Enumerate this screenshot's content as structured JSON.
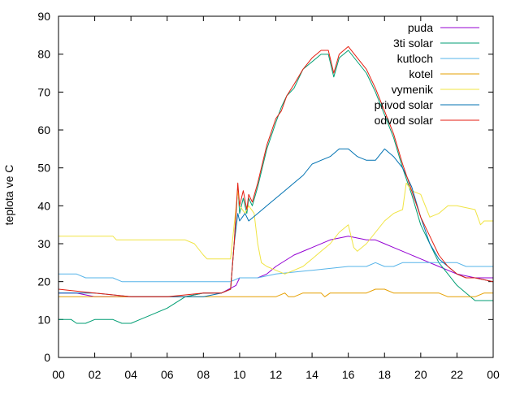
{
  "chart_data": {
    "type": "line",
    "title": "",
    "xlabel": "",
    "ylabel": "teplota ve C",
    "xlim": [
      0,
      24
    ],
    "ylim": [
      0,
      90
    ],
    "grid": false,
    "legend_position": "top-right",
    "x_ticks": [
      "00",
      "02",
      "04",
      "06",
      "08",
      "10",
      "12",
      "14",
      "16",
      "18",
      "20",
      "22",
      "00"
    ],
    "y_ticks": [
      "0",
      "10",
      "20",
      "30",
      "40",
      "50",
      "60",
      "70",
      "80",
      "90"
    ],
    "series": [
      {
        "name": "puda",
        "color": "#9400d3",
        "points": [
          [
            0,
            17
          ],
          [
            1,
            17
          ],
          [
            2,
            16
          ],
          [
            3,
            16
          ],
          [
            4,
            16
          ],
          [
            5,
            16
          ],
          [
            6,
            16
          ],
          [
            7,
            16
          ],
          [
            8,
            17
          ],
          [
            9,
            17
          ],
          [
            9.8,
            19
          ],
          [
            10,
            21
          ],
          [
            11,
            21
          ],
          [
            11.5,
            22
          ],
          [
            12,
            24
          ],
          [
            13,
            27
          ],
          [
            14,
            29
          ],
          [
            15,
            31
          ],
          [
            16,
            32
          ],
          [
            17,
            31
          ],
          [
            17.5,
            31
          ],
          [
            18,
            30
          ],
          [
            18.5,
            29
          ],
          [
            19,
            28
          ],
          [
            20,
            26
          ],
          [
            21,
            24
          ],
          [
            22,
            22
          ],
          [
            23,
            21
          ],
          [
            24,
            21
          ]
        ]
      },
      {
        "name": "3ti solar",
        "color": "#009e73",
        "points": [
          [
            0,
            10
          ],
          [
            0.7,
            10
          ],
          [
            1,
            9
          ],
          [
            1.5,
            9
          ],
          [
            2,
            10
          ],
          [
            3,
            10
          ],
          [
            3.5,
            9
          ],
          [
            4,
            9
          ],
          [
            4.5,
            10
          ],
          [
            5,
            11
          ],
          [
            6,
            13
          ],
          [
            7,
            16
          ],
          [
            8,
            17
          ],
          [
            9,
            17
          ],
          [
            9.5,
            18
          ],
          [
            9.7,
            30
          ],
          [
            9.9,
            45
          ],
          [
            10,
            38
          ],
          [
            10.2,
            42
          ],
          [
            10.4,
            38
          ],
          [
            10.5,
            42
          ],
          [
            10.7,
            40
          ],
          [
            11,
            45
          ],
          [
            11.5,
            55
          ],
          [
            12,
            62
          ],
          [
            12.3,
            66
          ],
          [
            12.6,
            69
          ],
          [
            13,
            71
          ],
          [
            13.5,
            76
          ],
          [
            14,
            78
          ],
          [
            14.5,
            80
          ],
          [
            14.9,
            80
          ],
          [
            15.2,
            74
          ],
          [
            15.5,
            79
          ],
          [
            16,
            81
          ],
          [
            16.5,
            78
          ],
          [
            17,
            75
          ],
          [
            17.5,
            70
          ],
          [
            18,
            64
          ],
          [
            18.5,
            58
          ],
          [
            19,
            50
          ],
          [
            19.5,
            43
          ],
          [
            20,
            35
          ],
          [
            20.5,
            30
          ],
          [
            21,
            25
          ],
          [
            21.5,
            22
          ],
          [
            22,
            19
          ],
          [
            22.5,
            17
          ],
          [
            23,
            15
          ],
          [
            24,
            15
          ]
        ]
      },
      {
        "name": "kutloch",
        "color": "#56b4e9",
        "points": [
          [
            0,
            22
          ],
          [
            1,
            22
          ],
          [
            1.5,
            21
          ],
          [
            3,
            21
          ],
          [
            3.5,
            20
          ],
          [
            4,
            20
          ],
          [
            6,
            20
          ],
          [
            8,
            20
          ],
          [
            9.5,
            20
          ],
          [
            10,
            21
          ],
          [
            11,
            21
          ],
          [
            12,
            22
          ],
          [
            14,
            23
          ],
          [
            16,
            24
          ],
          [
            17,
            24
          ],
          [
            17.5,
            25
          ],
          [
            18,
            24
          ],
          [
            18.5,
            24
          ],
          [
            19,
            25
          ],
          [
            22,
            25
          ],
          [
            22.5,
            24
          ],
          [
            24,
            24
          ]
        ]
      },
      {
        "name": "kotel",
        "color": "#e69f00",
        "points": [
          [
            0,
            16
          ],
          [
            10,
            16
          ],
          [
            11,
            16
          ],
          [
            12,
            16
          ],
          [
            12.5,
            17
          ],
          [
            12.7,
            16
          ],
          [
            13,
            16
          ],
          [
            13.5,
            17
          ],
          [
            14,
            17
          ],
          [
            14.5,
            17
          ],
          [
            14.7,
            16
          ],
          [
            15,
            17
          ],
          [
            16,
            17
          ],
          [
            17,
            17
          ],
          [
            17.5,
            18
          ],
          [
            18,
            18
          ],
          [
            18.5,
            17
          ],
          [
            19,
            17
          ],
          [
            21,
            17
          ],
          [
            21.5,
            16
          ],
          [
            23,
            16
          ],
          [
            23.5,
            17
          ],
          [
            24,
            17
          ]
        ]
      },
      {
        "name": "vymenik",
        "color": "#f0e442",
        "points": [
          [
            0,
            32
          ],
          [
            3,
            32
          ],
          [
            3.2,
            31
          ],
          [
            5,
            31
          ],
          [
            7,
            31
          ],
          [
            7.5,
            30
          ],
          [
            8,
            27
          ],
          [
            8.2,
            26
          ],
          [
            9,
            26
          ],
          [
            9.5,
            26
          ],
          [
            9.7,
            35
          ],
          [
            9.9,
            44
          ],
          [
            10,
            40
          ],
          [
            10.3,
            38
          ],
          [
            10.5,
            40
          ],
          [
            10.8,
            38
          ],
          [
            11,
            30
          ],
          [
            11.2,
            25
          ],
          [
            11.5,
            24
          ],
          [
            12,
            23
          ],
          [
            12.5,
            22
          ],
          [
            13,
            23
          ],
          [
            13.5,
            24
          ],
          [
            14,
            26
          ],
          [
            14.5,
            28
          ],
          [
            15,
            30
          ],
          [
            15.5,
            33
          ],
          [
            16,
            35
          ],
          [
            16.3,
            29
          ],
          [
            16.5,
            28
          ],
          [
            17,
            30
          ],
          [
            17.5,
            33
          ],
          [
            18,
            36
          ],
          [
            18.5,
            38
          ],
          [
            19,
            39
          ],
          [
            19.2,
            46
          ],
          [
            19.5,
            44
          ],
          [
            20,
            43
          ],
          [
            20.5,
            37
          ],
          [
            21,
            38
          ],
          [
            21.5,
            40
          ],
          [
            22,
            40
          ],
          [
            23,
            39
          ],
          [
            23.3,
            35
          ],
          [
            23.5,
            36
          ],
          [
            24,
            36
          ]
        ]
      },
      {
        "name": "privod solar",
        "color": "#0072b2",
        "points": [
          [
            0,
            17
          ],
          [
            2,
            17
          ],
          [
            4,
            16
          ],
          [
            6,
            16
          ],
          [
            8,
            16
          ],
          [
            9,
            17
          ],
          [
            9.5,
            18
          ],
          [
            9.7,
            30
          ],
          [
            9.9,
            38
          ],
          [
            10,
            36
          ],
          [
            10.3,
            38
          ],
          [
            10.5,
            36
          ],
          [
            11,
            38
          ],
          [
            11.5,
            40
          ],
          [
            12,
            42
          ],
          [
            12.5,
            44
          ],
          [
            13,
            46
          ],
          [
            13.5,
            48
          ],
          [
            14,
            51
          ],
          [
            14.5,
            52
          ],
          [
            15,
            53
          ],
          [
            15.5,
            55
          ],
          [
            16,
            55
          ],
          [
            16.5,
            53
          ],
          [
            17,
            52
          ],
          [
            17.5,
            52
          ],
          [
            18,
            55
          ],
          [
            18.5,
            53
          ],
          [
            19,
            50
          ],
          [
            19.5,
            45
          ],
          [
            20,
            37
          ],
          [
            20.5,
            30
          ],
          [
            21,
            26
          ],
          [
            21.5,
            24
          ],
          [
            22,
            22
          ],
          [
            22.5,
            21
          ],
          [
            23,
            21
          ],
          [
            24,
            20
          ]
        ]
      },
      {
        "name": "odvod solar",
        "color": "#e51e10",
        "points": [
          [
            0,
            18
          ],
          [
            2,
            17
          ],
          [
            4,
            16
          ],
          [
            6,
            16
          ],
          [
            8,
            17
          ],
          [
            9,
            17
          ],
          [
            9.5,
            18
          ],
          [
            9.7,
            30
          ],
          [
            9.9,
            46
          ],
          [
            10,
            40
          ],
          [
            10.2,
            44
          ],
          [
            10.4,
            39
          ],
          [
            10.5,
            43
          ],
          [
            10.7,
            41
          ],
          [
            11,
            46
          ],
          [
            11.5,
            56
          ],
          [
            12,
            63
          ],
          [
            12.3,
            65
          ],
          [
            12.6,
            69
          ],
          [
            13,
            72
          ],
          [
            13.5,
            76
          ],
          [
            14,
            79
          ],
          [
            14.5,
            81
          ],
          [
            14.9,
            81
          ],
          [
            15.2,
            75
          ],
          [
            15.5,
            80
          ],
          [
            16,
            82
          ],
          [
            16.5,
            79
          ],
          [
            17,
            76
          ],
          [
            17.5,
            71
          ],
          [
            18,
            65
          ],
          [
            18.5,
            59
          ],
          [
            19,
            51
          ],
          [
            19.5,
            44
          ],
          [
            20,
            37
          ],
          [
            20.5,
            32
          ],
          [
            21,
            27
          ],
          [
            21.5,
            24
          ],
          [
            22,
            22
          ],
          [
            22.5,
            21
          ],
          [
            23,
            21
          ],
          [
            24,
            20
          ]
        ]
      }
    ]
  }
}
